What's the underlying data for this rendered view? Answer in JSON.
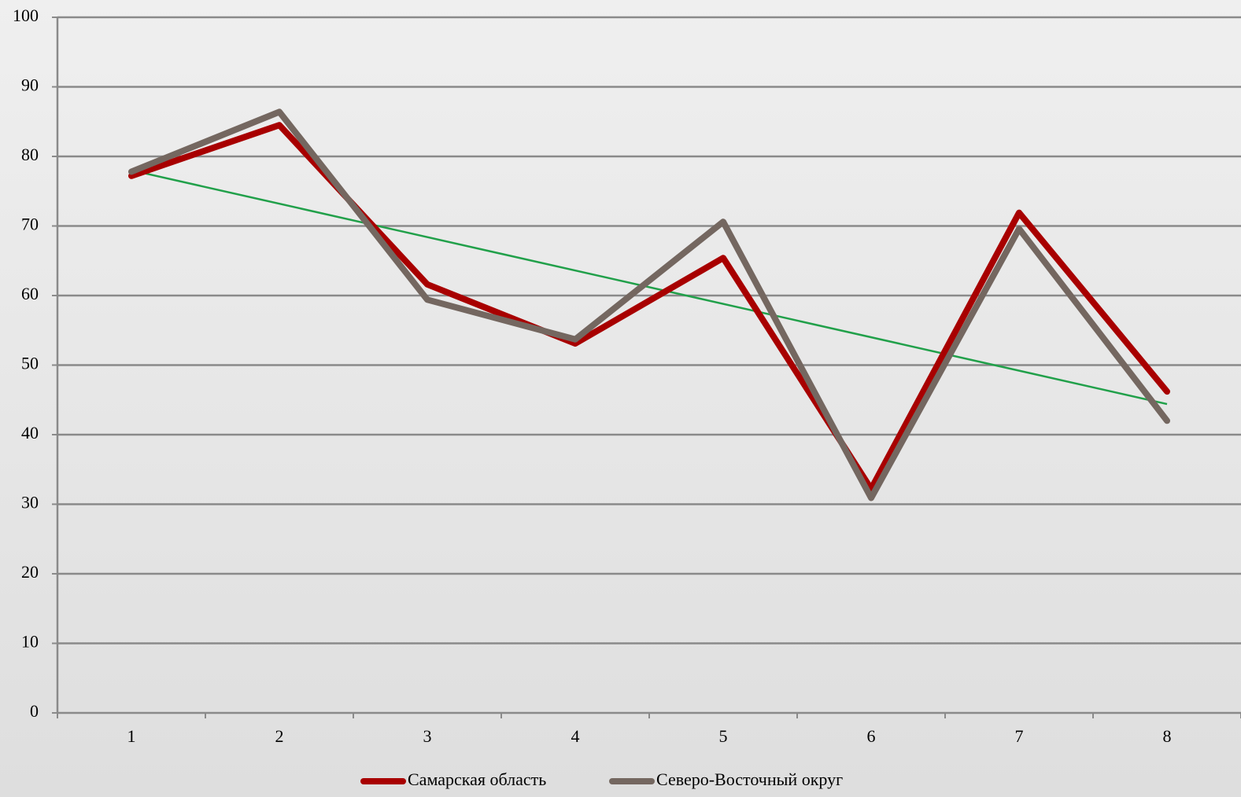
{
  "chart_data": {
    "type": "line",
    "categories": [
      "1",
      "2",
      "3",
      "4",
      "5",
      "6",
      "7",
      "8"
    ],
    "ylim": [
      0,
      100
    ],
    "yticks": [
      "0",
      "10",
      "20",
      "30",
      "40",
      "50",
      "60",
      "70",
      "80",
      "90",
      "100"
    ],
    "grid": true,
    "legend_position": "bottom",
    "series": [
      {
        "name": "Самарская область",
        "color": "#a80000",
        "values": [
          77.2,
          84.5,
          61.6,
          53.1,
          65.4,
          32.2,
          71.9,
          46.2
        ]
      },
      {
        "name": "Северо-Восточный округ",
        "color": "#746760",
        "values": [
          77.8,
          86.4,
          59.4,
          53.7,
          70.6,
          30.9,
          69.6,
          42.0
        ]
      }
    ],
    "trendline": {
      "color": "#21a04a",
      "start": 78.0,
      "end": 44.4
    }
  }
}
